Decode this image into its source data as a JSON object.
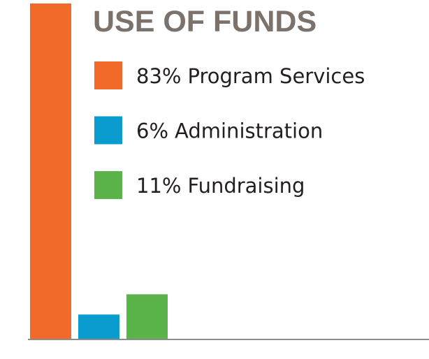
{
  "chart_data": {
    "type": "bar",
    "title": "USE OF FUNDS",
    "categories": [
      "Program Services",
      "Administration",
      "Fundraising"
    ],
    "values": [
      83,
      6,
      11
    ],
    "value_labels": [
      "83%",
      "6%",
      "11%"
    ],
    "colors": [
      "#f26a2a",
      "#0a9ccf",
      "#5ab44a"
    ],
    "ylim": [
      0,
      83
    ]
  }
}
